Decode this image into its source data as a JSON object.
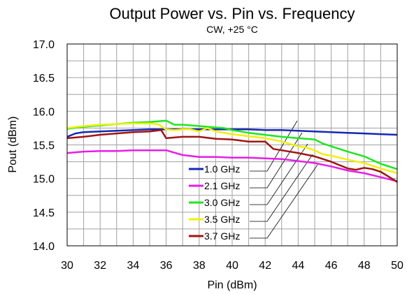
{
  "chart_data": {
    "type": "line",
    "title": "Output Power vs. Pin vs. Frequency",
    "subtitle": "CW, +25 °C",
    "xlabel": "Pin (dBm)",
    "ylabel": "Pout (dBm)",
    "xlim": [
      30,
      50
    ],
    "ylim": [
      14.0,
      17.0
    ],
    "xticks": [
      "30",
      "32",
      "34",
      "36",
      "38",
      "40",
      "42",
      "44",
      "46",
      "48",
      "50"
    ],
    "yticks": [
      "14.0",
      "14.5",
      "15.0",
      "15.5",
      "16.0",
      "16.5",
      "17.0"
    ],
    "grid": true,
    "legend_placement": "bottom-center with leader lines",
    "series": [
      {
        "name": "1.0 GHz",
        "color": "#1428b4",
        "x": [
          30,
          30.5,
          31,
          32,
          33,
          34,
          35,
          36,
          37,
          38,
          39,
          40,
          41,
          42,
          43,
          44,
          45,
          46,
          47,
          48,
          49,
          50
        ],
        "y": [
          15.62,
          15.67,
          15.69,
          15.7,
          15.71,
          15.72,
          15.73,
          15.73,
          15.73,
          15.73,
          15.73,
          15.73,
          15.73,
          15.72,
          15.72,
          15.71,
          15.7,
          15.69,
          15.68,
          15.67,
          15.66,
          15.65
        ]
      },
      {
        "name": "2.1 GHz",
        "color": "#e61ee6",
        "x": [
          30,
          31,
          32,
          33,
          34,
          35,
          36,
          37,
          38,
          39,
          40,
          41,
          42,
          43,
          44,
          45,
          46,
          47,
          48,
          49,
          50
        ],
        "y": [
          15.38,
          15.4,
          15.41,
          15.41,
          15.42,
          15.42,
          15.42,
          15.35,
          15.32,
          15.32,
          15.31,
          15.31,
          15.3,
          15.29,
          15.26,
          15.23,
          15.18,
          15.12,
          15.08,
          15.02,
          14.96
        ]
      },
      {
        "name": "3.0 GHz",
        "color": "#1ee61e",
        "x": [
          30,
          31,
          32,
          33,
          34,
          35,
          35.5,
          36,
          36.5,
          37,
          38,
          39,
          39.5,
          40,
          41,
          42,
          43,
          44,
          45,
          45.5,
          46,
          47,
          48,
          49,
          50
        ],
        "y": [
          15.74,
          15.77,
          15.79,
          15.81,
          15.83,
          15.84,
          15.85,
          15.86,
          15.8,
          15.8,
          15.78,
          15.76,
          15.75,
          15.72,
          15.68,
          15.65,
          15.62,
          15.6,
          15.58,
          15.52,
          15.48,
          15.4,
          15.33,
          15.22,
          15.14
        ]
      },
      {
        "name": "3.5 GHz",
        "color": "#f0f00a",
        "x": [
          30,
          31,
          32,
          33,
          34,
          35,
          35.5,
          36,
          36.5,
          37,
          37.5,
          38,
          38.5,
          39,
          40,
          41,
          42,
          43,
          44,
          44.5,
          45,
          45.5,
          46,
          47,
          48,
          49,
          50
        ],
        "y": [
          15.75,
          15.78,
          15.8,
          15.81,
          15.82,
          15.82,
          15.81,
          15.73,
          15.72,
          15.73,
          15.73,
          15.7,
          15.75,
          15.7,
          15.66,
          15.63,
          15.6,
          15.55,
          15.48,
          15.46,
          15.42,
          15.36,
          15.34,
          15.28,
          15.23,
          15.15,
          15.08
        ]
      },
      {
        "name": "3.7 GHz",
        "color": "#a01414",
        "x": [
          30,
          31,
          32,
          33,
          34,
          35,
          35.7,
          36,
          37,
          38,
          39,
          40,
          41,
          42,
          42.5,
          43,
          44,
          45,
          46,
          47,
          47.5,
          48,
          48.5,
          49,
          50
        ],
        "y": [
          15.6,
          15.62,
          15.65,
          15.67,
          15.69,
          15.7,
          15.72,
          15.6,
          15.62,
          15.62,
          15.59,
          15.58,
          15.55,
          15.55,
          15.44,
          15.42,
          15.38,
          15.33,
          15.25,
          15.15,
          15.13,
          15.16,
          15.14,
          15.1,
          14.95
        ]
      }
    ]
  }
}
